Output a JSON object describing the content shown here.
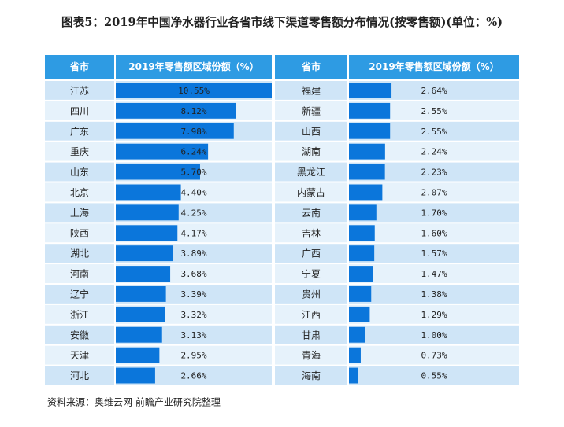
{
  "title": "图表5：2019年中国净水器行业各省市线下渠道零售额分布情况(按零售额)(单位：%)",
  "source": "资料来源：奥维云网 前瞻产业研究院整理",
  "chart_data": [
    {
      "type": "bar",
      "headers": [
        "省市",
        "2019年零售额区域份额（%）"
      ],
      "color": "#0b76db",
      "xlim": [
        0,
        10.55
      ],
      "categories": [
        "江苏",
        "四川",
        "广东",
        "重庆",
        "山东",
        "北京",
        "上海",
        "陕西",
        "湖北",
        "河南",
        "辽宁",
        "浙江",
        "安徽",
        "天津",
        "河北"
      ],
      "values": [
        10.55,
        8.12,
        7.98,
        6.24,
        5.7,
        4.4,
        4.25,
        4.17,
        3.89,
        3.68,
        3.39,
        3.32,
        3.13,
        2.95,
        2.66
      ],
      "value_labels": [
        "10.55%",
        "8.12%",
        "7.98%",
        "6.24%",
        "5.70%",
        "4.40%",
        "4.25%",
        "4.17%",
        "3.89%",
        "3.68%",
        "3.39%",
        "3.32%",
        "3.13%",
        "2.95%",
        "2.66%"
      ]
    },
    {
      "type": "bar",
      "headers": [
        "省市",
        "2019年零售额区域份额（%）"
      ],
      "color": "#0b76db",
      "xlim": [
        0,
        10.55
      ],
      "categories": [
        "福建",
        "新疆",
        "山西",
        "湖南",
        "黑龙江",
        "内蒙古",
        "云南",
        "吉林",
        "广西",
        "宁夏",
        "贵州",
        "江西",
        "甘肃",
        "青海",
        "海南"
      ],
      "values": [
        2.64,
        2.55,
        2.55,
        2.24,
        2.23,
        2.07,
        1.7,
        1.6,
        1.57,
        1.47,
        1.38,
        1.29,
        1.0,
        0.73,
        0.55
      ],
      "value_labels": [
        "2.64%",
        "2.55%",
        "2.55%",
        "2.24%",
        "2.23%",
        "2.07%",
        "1.70%",
        "1.60%",
        "1.57%",
        "1.47%",
        "1.38%",
        "1.29%",
        "1.00%",
        "0.73%",
        "0.55%"
      ]
    }
  ]
}
